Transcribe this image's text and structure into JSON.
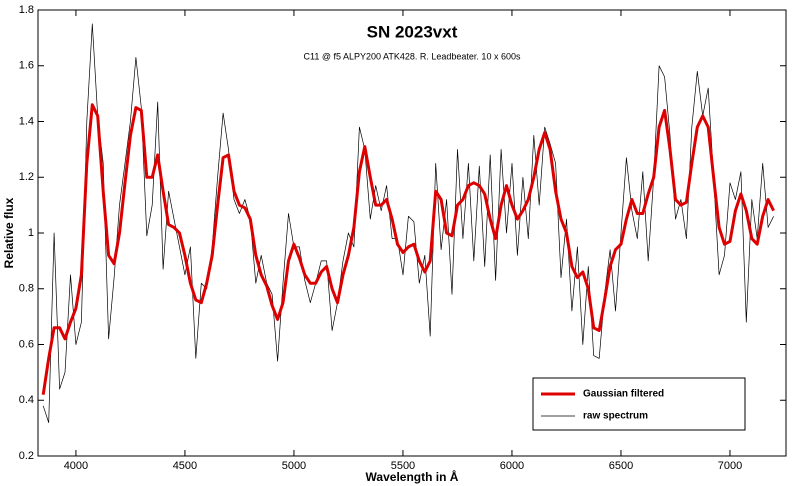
{
  "chart_data": {
    "type": "line",
    "title": "SN 2023vxt",
    "subtitle": "C11 @ f5 ALPY200 ATK428. R. Leadbeater.  10 x 600s",
    "x_label": "Wavelength in Å",
    "y_label": "Relative flux",
    "xlim": [
      3826,
      7257
    ],
    "ylim": [
      0.2,
      1.8
    ],
    "xticks": [
      4000,
      4500,
      5000,
      5500,
      6000,
      6500,
      7000
    ],
    "yticks": [
      0.2,
      0.4,
      0.6,
      0.8,
      1,
      1.2,
      1.4,
      1.6,
      1.8
    ],
    "legend": "lower right",
    "x": [
      3850,
      3875,
      3900,
      3925,
      3950,
      3975,
      4000,
      4025,
      4050,
      4075,
      4100,
      4125,
      4150,
      4175,
      4200,
      4225,
      4250,
      4275,
      4300,
      4325,
      4350,
      4375,
      4400,
      4425,
      4450,
      4475,
      4500,
      4525,
      4550,
      4575,
      4600,
      4625,
      4650,
      4675,
      4700,
      4725,
      4750,
      4775,
      4800,
      4825,
      4850,
      4875,
      4900,
      4925,
      4950,
      4975,
      5000,
      5025,
      5050,
      5075,
      5100,
      5125,
      5150,
      5175,
      5200,
      5225,
      5250,
      5275,
      5300,
      5325,
      5350,
      5375,
      5400,
      5425,
      5450,
      5475,
      5500,
      5525,
      5550,
      5575,
      5600,
      5625,
      5650,
      5675,
      5700,
      5725,
      5750,
      5775,
      5800,
      5825,
      5850,
      5875,
      5900,
      5925,
      5950,
      5975,
      6000,
      6025,
      6050,
      6075,
      6100,
      6125,
      6150,
      6175,
      6200,
      6225,
      6250,
      6275,
      6300,
      6325,
      6350,
      6375,
      6400,
      6425,
      6450,
      6475,
      6500,
      6525,
      6550,
      6575,
      6600,
      6625,
      6650,
      6675,
      6700,
      6725,
      6750,
      6775,
      6800,
      6825,
      6850,
      6875,
      6900,
      6925,
      6950,
      6975,
      7000,
      7025,
      7050,
      7075,
      7100,
      7125,
      7150,
      7175,
      7200
    ],
    "series": [
      {
        "name": "Gaussian filtered",
        "color": "#dd0000",
        "width": 3,
        "values": [
          0.42,
          0.55,
          0.66,
          0.66,
          0.62,
          0.68,
          0.73,
          0.85,
          1.25,
          1.46,
          1.42,
          1.15,
          0.92,
          0.89,
          1.0,
          1.18,
          1.35,
          1.45,
          1.44,
          1.2,
          1.2,
          1.28,
          1.15,
          1.03,
          1.02,
          1.0,
          0.92,
          0.82,
          0.76,
          0.75,
          0.82,
          0.92,
          1.1,
          1.27,
          1.28,
          1.15,
          1.1,
          1.09,
          1.05,
          0.92,
          0.85,
          0.81,
          0.74,
          0.69,
          0.75,
          0.9,
          0.96,
          0.91,
          0.85,
          0.82,
          0.82,
          0.86,
          0.88,
          0.8,
          0.75,
          0.85,
          0.92,
          1.02,
          1.22,
          1.31,
          1.2,
          1.1,
          1.1,
          1.12,
          1.05,
          0.96,
          0.93,
          0.95,
          0.96,
          0.9,
          0.86,
          0.9,
          1.15,
          1.12,
          1.0,
          0.99,
          1.1,
          1.12,
          1.17,
          1.18,
          1.17,
          1.14,
          1.05,
          0.98,
          1.1,
          1.17,
          1.1,
          1.05,
          1.08,
          1.12,
          1.2,
          1.3,
          1.36,
          1.3,
          1.15,
          1.05,
          1.0,
          0.88,
          0.84,
          0.86,
          0.8,
          0.66,
          0.65,
          0.76,
          0.88,
          0.94,
          0.96,
          1.05,
          1.12,
          1.07,
          1.07,
          1.14,
          1.2,
          1.38,
          1.44,
          1.3,
          1.12,
          1.1,
          1.11,
          1.25,
          1.38,
          1.42,
          1.38,
          1.2,
          1.02,
          0.96,
          0.97,
          1.08,
          1.14,
          1.08,
          0.98,
          0.96,
          1.06,
          1.12,
          1.08
        ]
      },
      {
        "name": "raw spectrum",
        "color": "#000000",
        "width": 0.7,
        "values": [
          0.38,
          0.32,
          1.0,
          0.44,
          0.5,
          0.85,
          0.6,
          0.68,
          1.4,
          1.75,
          1.42,
          1.25,
          0.62,
          0.84,
          1.1,
          1.25,
          1.4,
          1.63,
          1.45,
          0.99,
          1.1,
          1.47,
          0.87,
          1.15,
          1.05,
          0.95,
          0.85,
          0.95,
          0.55,
          0.82,
          0.8,
          0.95,
          1.2,
          1.43,
          1.3,
          1.12,
          1.07,
          1.12,
          1.05,
          0.82,
          0.92,
          0.82,
          0.78,
          0.54,
          0.82,
          1.07,
          0.95,
          0.95,
          0.83,
          0.75,
          0.82,
          0.9,
          0.9,
          0.65,
          0.75,
          0.9,
          1.0,
          0.95,
          1.38,
          1.3,
          1.05,
          1.17,
          1.08,
          1.17,
          0.98,
          0.98,
          0.85,
          1.06,
          1.04,
          0.82,
          0.92,
          0.63,
          1.25,
          0.94,
          1.12,
          0.78,
          1.3,
          0.98,
          1.25,
          0.9,
          1.24,
          0.88,
          1.28,
          0.83,
          1.3,
          1.0,
          1.25,
          0.92,
          1.2,
          0.98,
          1.35,
          1.1,
          1.38,
          1.32,
          1.25,
          0.84,
          1.05,
          0.72,
          0.95,
          0.6,
          0.88,
          0.56,
          0.55,
          0.78,
          0.94,
          0.72,
          1.0,
          1.27,
          1.08,
          0.98,
          1.22,
          0.9,
          1.2,
          1.6,
          1.56,
          1.35,
          1.05,
          1.12,
          0.98,
          1.38,
          1.58,
          1.42,
          1.52,
          1.2,
          0.85,
          0.92,
          1.18,
          1.12,
          1.22,
          0.68,
          1.12,
          0.98,
          1.25,
          1.02,
          1.06
        ]
      }
    ]
  }
}
